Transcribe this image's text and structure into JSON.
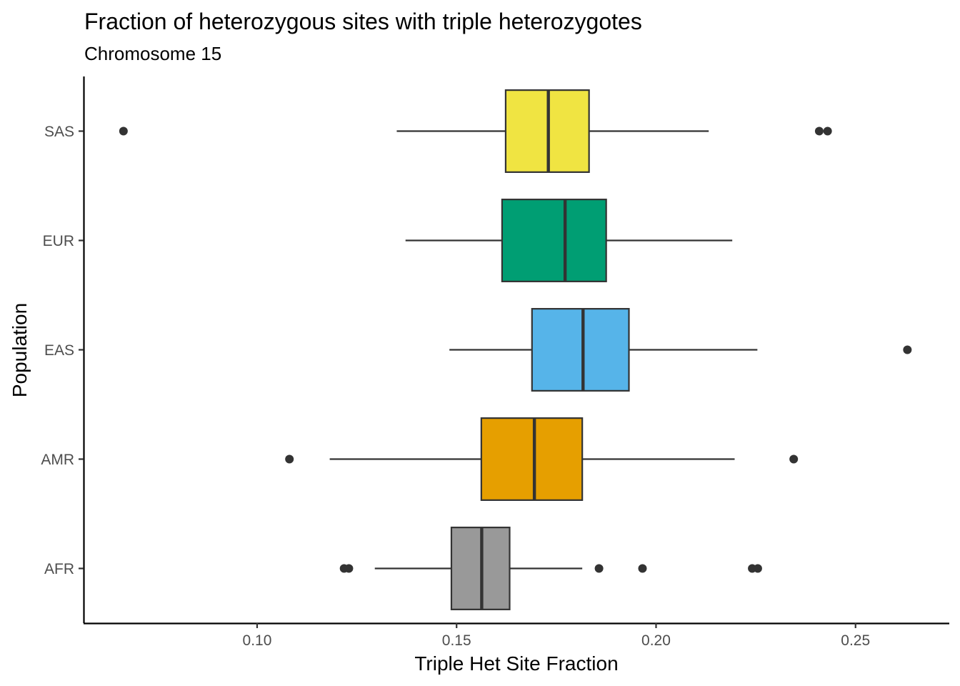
{
  "chart_data": {
    "type": "boxplot",
    "orientation": "horizontal",
    "title": "Fraction of heterozygous sites with triple heterozygotes",
    "subtitle": "Chromosome 15",
    "xlabel": "Triple Het Site Fraction",
    "ylabel": "Population",
    "xlim": [
      0.0565,
      0.2735
    ],
    "x_ticks": [
      0.1,
      0.15,
      0.2,
      0.25
    ],
    "x_tick_labels": [
      "0.10",
      "0.15",
      "0.20",
      "0.25"
    ],
    "categories": [
      "AFR",
      "AMR",
      "EAS",
      "EUR",
      "SAS"
    ],
    "grid": false,
    "legend": "none",
    "series": [
      {
        "category": "AFR",
        "color": "#999999",
        "whisker_low": 0.1295,
        "q1": 0.1487,
        "median": 0.1563,
        "q3": 0.1633,
        "whisker_high": 0.1815,
        "outliers": [
          0.1218,
          0.123,
          0.1857,
          0.1966,
          0.2241,
          0.2255
        ]
      },
      {
        "category": "AMR",
        "color": "#E69F00",
        "whisker_low": 0.1182,
        "q1": 0.1562,
        "median": 0.1695,
        "q3": 0.1815,
        "whisker_high": 0.2197,
        "outliers": [
          0.1081,
          0.2345
        ]
      },
      {
        "category": "EAS",
        "color": "#56B4E9",
        "whisker_low": 0.1482,
        "q1": 0.1689,
        "median": 0.1817,
        "q3": 0.1932,
        "whisker_high": 0.2254,
        "outliers": [
          0.263
        ]
      },
      {
        "category": "EUR",
        "color": "#009E73",
        "whisker_low": 0.1372,
        "q1": 0.1614,
        "median": 0.1772,
        "q3": 0.1875,
        "whisker_high": 0.2191,
        "outliers": []
      },
      {
        "category": "SAS",
        "color": "#F0E442",
        "whisker_low": 0.135,
        "q1": 0.1623,
        "median": 0.173,
        "q3": 0.1832,
        "whisker_high": 0.2132,
        "outliers": [
          0.0665,
          0.2409,
          0.243
        ]
      }
    ]
  }
}
